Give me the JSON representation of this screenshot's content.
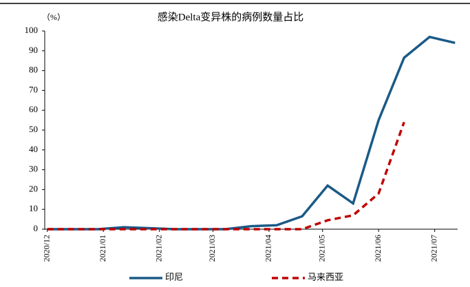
{
  "chart_data": {
    "type": "line",
    "title": "感染Delta变异株的病例数量占比",
    "ylabel": "（%）",
    "categories": [
      null,
      null,
      null,
      null,
      null,
      null,
      null,
      null,
      null,
      null,
      null,
      null,
      null,
      null,
      null,
      null,
      null
    ],
    "series": [
      {
        "name": "印尼",
        "color": "#1a5a87",
        "dash": false,
        "values": [
          0,
          0,
          0,
          1,
          0.5,
          0,
          0,
          0,
          1.5,
          2,
          6.5,
          22,
          13,
          55,
          86.5,
          97,
          94
        ]
      },
      {
        "name": "马来西亚",
        "color": "#c00000",
        "dash": true,
        "values": [
          0,
          0,
          0,
          0,
          0,
          0,
          0,
          0,
          0,
          0,
          0,
          4.5,
          7,
          18,
          54,
          null,
          null
        ]
      }
    ],
    "xlim": [
      -0.1,
      16.1
    ],
    "xticks": [
      {
        "value": 0,
        "label": "2020/12"
      },
      {
        "value": 2.2,
        "label": "2021/01"
      },
      {
        "value": 4.4,
        "label": "2021/02"
      },
      {
        "value": 6.5,
        "label": "2021/03"
      },
      {
        "value": 8.7,
        "label": "2021/04"
      },
      {
        "value": 10.8,
        "label": "2021/05"
      },
      {
        "value": 13,
        "label": "2021/06"
      },
      {
        "value": 15.2,
        "label": "2021/07"
      }
    ],
    "ylim": [
      0,
      100
    ],
    "yticks": [
      0,
      10,
      20,
      30,
      40,
      50,
      60,
      70,
      80,
      90,
      100
    ],
    "grid": false,
    "legend": "bottom"
  }
}
